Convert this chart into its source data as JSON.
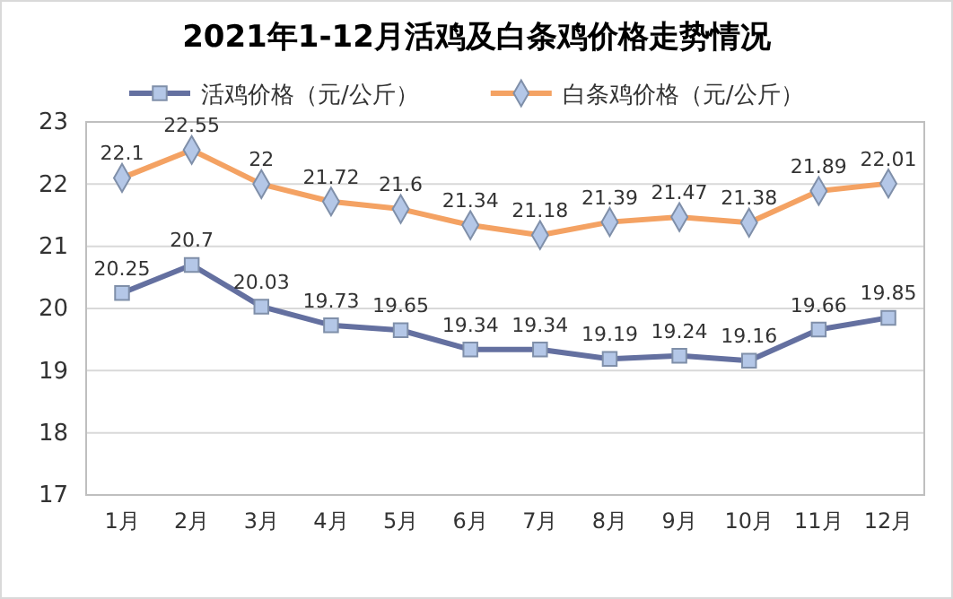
{
  "chart_data": {
    "type": "line",
    "title": "2021年1-12月活鸡及白条鸡价格走势情况",
    "categories": [
      "1月",
      "2月",
      "3月",
      "4月",
      "5月",
      "6月",
      "7月",
      "8月",
      "9月",
      "10月",
      "11月",
      "12月"
    ],
    "series": [
      {
        "name": "活鸡价格（元/公斤）",
        "color": "#6470a0",
        "marker": "square",
        "values": [
          20.25,
          20.7,
          20.03,
          19.73,
          19.65,
          19.34,
          19.34,
          19.19,
          19.24,
          19.16,
          19.66,
          19.85
        ]
      },
      {
        "name": "白条鸡价格（元/公斤）",
        "color": "#f4a263",
        "marker": "diamond",
        "values": [
          22.1,
          22.55,
          22,
          21.72,
          21.6,
          21.34,
          21.18,
          21.39,
          21.47,
          21.38,
          21.89,
          22.01
        ]
      }
    ],
    "ylim": [
      17,
      23
    ],
    "yticks": [
      17,
      18,
      19,
      20,
      21,
      22,
      23
    ],
    "grid": "y",
    "legend": "top",
    "data_labels": true,
    "line_style": "solid"
  }
}
